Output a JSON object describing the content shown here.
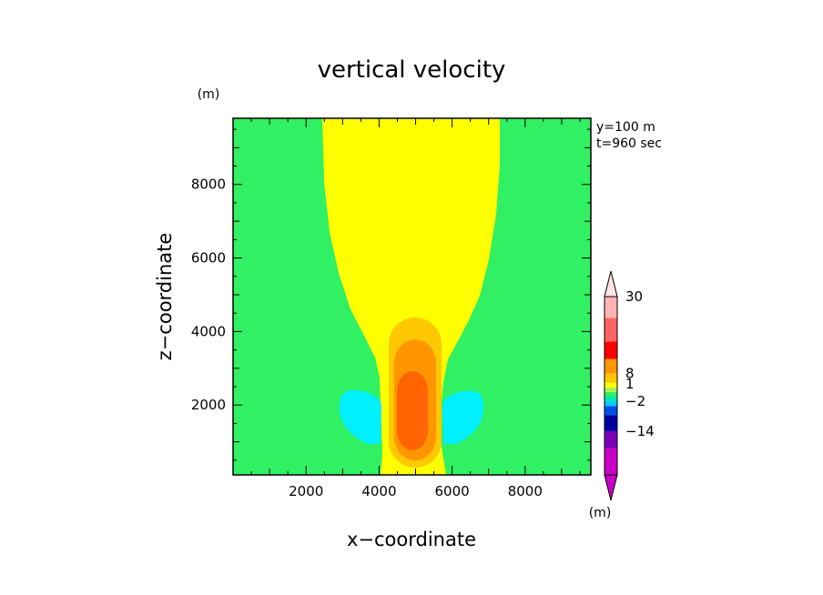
{
  "chart_data": {
    "type": "heatmap",
    "title": "vertical velocity",
    "xlabel": "x−coordinate",
    "ylabel": "z−coordinate",
    "y_unit": "(m)",
    "colorbar_unit": "(m)",
    "annotations": [
      "y=100 m",
      "t=960 sec"
    ],
    "xlim": [
      0,
      9800
    ],
    "ylim": [
      100,
      9800
    ],
    "xticks": [
      "2000",
      "4000",
      "6000",
      "8000"
    ],
    "xtick_values": [
      2000,
      4000,
      6000,
      8000
    ],
    "yticks": [
      "2000",
      "4000",
      "6000",
      "8000"
    ],
    "ytick_values": [
      2000,
      4000,
      6000,
      8000
    ],
    "colorbar": {
      "labels": [
        "30",
        "8",
        "1",
        "−2",
        "−14"
      ],
      "label_values": [
        30,
        8,
        1,
        -2,
        -14
      ],
      "bands": [
        {
          "color": "#c800c8"
        },
        {
          "color": "#7a00b4"
        },
        {
          "color": "#0000a0"
        },
        {
          "color": "#0050e6"
        },
        {
          "color": "#00c8ff"
        },
        {
          "color": "#00e6b4"
        },
        {
          "color": "#32f064"
        },
        {
          "color": "#aaf050"
        },
        {
          "color": "#ffff00"
        },
        {
          "color": "#ffc800"
        },
        {
          "color": "#ff9600"
        },
        {
          "color": "#ff0000"
        },
        {
          "color": "#ff6464"
        },
        {
          "color": "#ffb4b4"
        }
      ],
      "under_color": "#c800c8",
      "over_color": "#ffe6e6"
    },
    "field_colors": {
      "background": "#32f064",
      "updraft_weak": "#ffff00",
      "updraft_1": "#ffc800",
      "updraft_2": "#ff9600",
      "updraft_3": "#ff6400",
      "downdraft": "#00f0ff"
    }
  }
}
